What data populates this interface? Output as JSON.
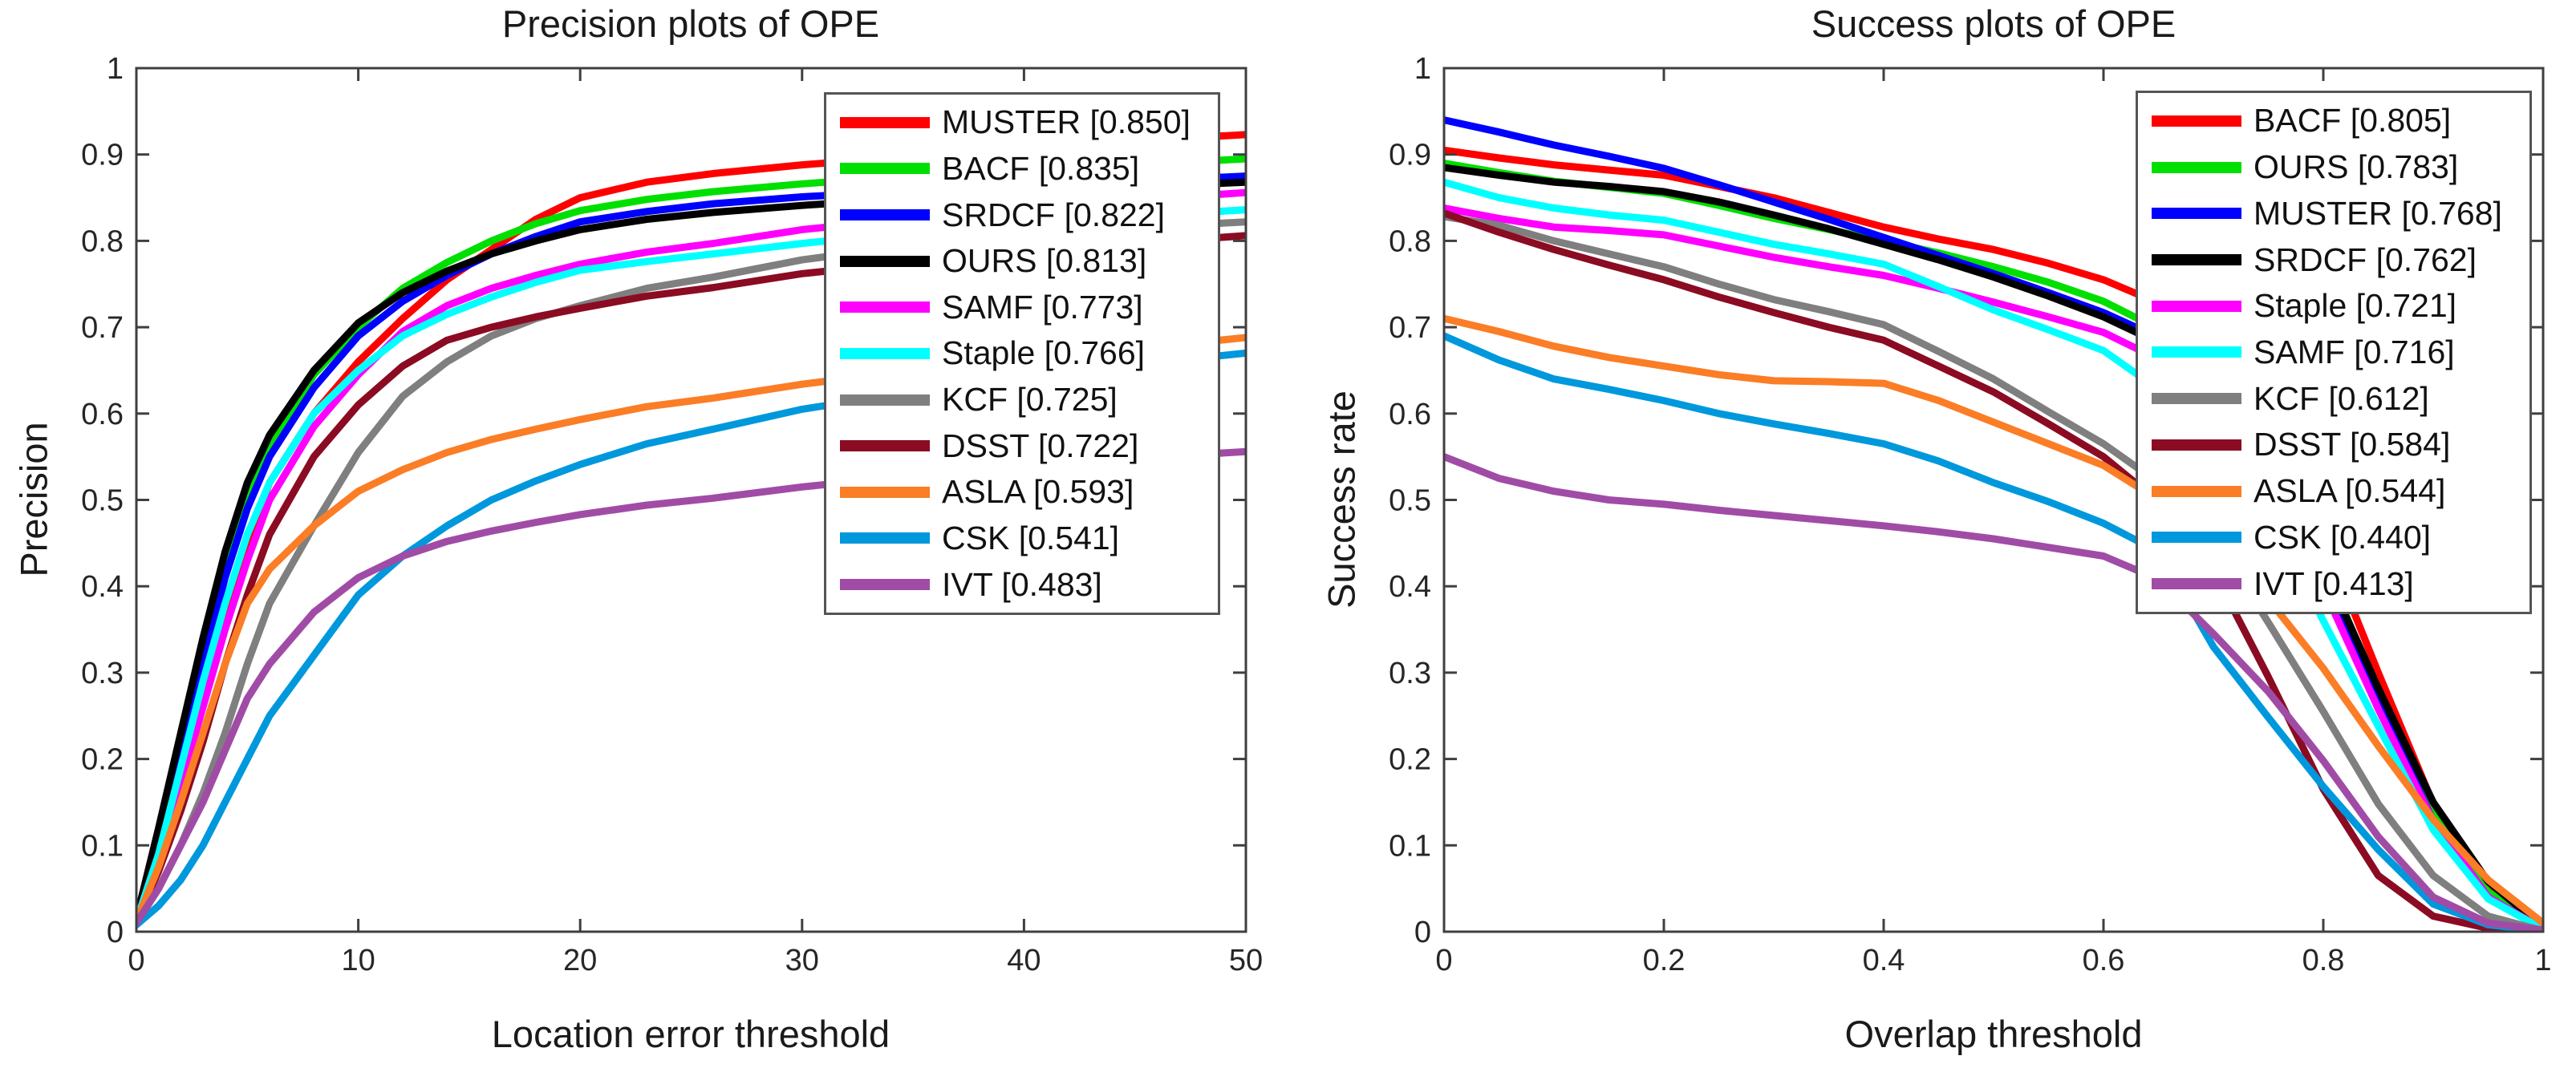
{
  "figure": {
    "background": "#ffffff",
    "axis_color": "#3f3f3f",
    "tick_label_color": "#262626"
  },
  "chart_data": [
    {
      "type": "line",
      "title": "Precision plots of OPE",
      "xlabel": "Location error threshold",
      "ylabel": "Precision",
      "xlim": [
        0,
        50
      ],
      "ylim": [
        0,
        1
      ],
      "grid": false,
      "legend_position": "upper-right-inside",
      "xticks": [
        0,
        10,
        20,
        30,
        40,
        50
      ],
      "xtick_labels": [
        "0",
        "10",
        "20",
        "30",
        "40",
        "50"
      ],
      "yticks": [
        0,
        0.1,
        0.2,
        0.3,
        0.4,
        0.5,
        0.6,
        0.7,
        0.8,
        0.9,
        1
      ],
      "ytick_labels": [
        "0",
        "0.1",
        "0.2",
        "0.3",
        "0.4",
        "0.5",
        "0.6",
        "0.7",
        "0.8",
        "0.9",
        "1"
      ],
      "x": [
        0,
        1,
        2,
        3,
        4,
        5,
        6,
        8,
        10,
        12,
        14,
        16,
        18,
        20,
        23,
        26,
        30,
        35,
        40,
        45,
        50
      ],
      "series": [
        {
          "name": "MUSTER",
          "score": "0.850",
          "color": "#ff0000",
          "values": [
            0.01,
            0.08,
            0.17,
            0.27,
            0.36,
            0.45,
            0.52,
            0.6,
            0.66,
            0.71,
            0.755,
            0.79,
            0.825,
            0.85,
            0.868,
            0.878,
            0.888,
            0.898,
            0.908,
            0.916,
            0.923
          ]
        },
        {
          "name": "BACF",
          "score": "0.835",
          "color": "#00e000",
          "values": [
            0.015,
            0.1,
            0.21,
            0.32,
            0.42,
            0.5,
            0.56,
            0.645,
            0.7,
            0.745,
            0.775,
            0.8,
            0.82,
            0.835,
            0.848,
            0.857,
            0.866,
            0.875,
            0.882,
            0.888,
            0.895
          ]
        },
        {
          "name": "SRDCF",
          "score": "0.822",
          "color": "#0000ff",
          "values": [
            0.013,
            0.1,
            0.2,
            0.31,
            0.41,
            0.49,
            0.55,
            0.63,
            0.69,
            0.73,
            0.76,
            0.785,
            0.805,
            0.822,
            0.834,
            0.843,
            0.851,
            0.858,
            0.864,
            0.869,
            0.875
          ]
        },
        {
          "name": "OURS",
          "score": "0.813",
          "color": "#000000",
          "values": [
            0.015,
            0.12,
            0.23,
            0.34,
            0.44,
            0.52,
            0.575,
            0.65,
            0.705,
            0.74,
            0.765,
            0.785,
            0.8,
            0.813,
            0.825,
            0.833,
            0.841,
            0.85,
            0.857,
            0.862,
            0.868
          ]
        },
        {
          "name": "SAMF",
          "score": "0.773",
          "color": "#ff00ff",
          "values": [
            0.012,
            0.08,
            0.17,
            0.26,
            0.35,
            0.43,
            0.5,
            0.585,
            0.645,
            0.695,
            0.725,
            0.745,
            0.76,
            0.773,
            0.787,
            0.797,
            0.813,
            0.826,
            0.837,
            0.847,
            0.856
          ]
        },
        {
          "name": "Staple",
          "score": "0.766",
          "color": "#00ffff",
          "values": [
            0.012,
            0.09,
            0.19,
            0.29,
            0.38,
            0.46,
            0.52,
            0.6,
            0.65,
            0.69,
            0.715,
            0.735,
            0.752,
            0.766,
            0.776,
            0.785,
            0.797,
            0.81,
            0.82,
            0.828,
            0.836
          ]
        },
        {
          "name": "KCF",
          "score": "0.725",
          "color": "#7f7f7f",
          "values": [
            0.01,
            0.05,
            0.1,
            0.16,
            0.23,
            0.31,
            0.38,
            0.47,
            0.555,
            0.62,
            0.66,
            0.69,
            0.71,
            0.725,
            0.745,
            0.758,
            0.778,
            0.795,
            0.806,
            0.815,
            0.822
          ]
        },
        {
          "name": "DSST",
          "score": "0.722",
          "color": "#8b0b23",
          "values": [
            0.012,
            0.07,
            0.14,
            0.22,
            0.31,
            0.39,
            0.46,
            0.55,
            0.61,
            0.655,
            0.685,
            0.7,
            0.712,
            0.722,
            0.736,
            0.746,
            0.762,
            0.775,
            0.787,
            0.797,
            0.806
          ]
        },
        {
          "name": "ASLA",
          "score": "0.593",
          "color": "#fb7d26",
          "values": [
            0.012,
            0.075,
            0.15,
            0.23,
            0.31,
            0.38,
            0.42,
            0.47,
            0.51,
            0.535,
            0.555,
            0.57,
            0.582,
            0.593,
            0.608,
            0.618,
            0.634,
            0.65,
            0.663,
            0.675,
            0.688
          ]
        },
        {
          "name": "CSK",
          "score": "0.541",
          "color": "#0098dc",
          "values": [
            0.008,
            0.03,
            0.06,
            0.1,
            0.15,
            0.2,
            0.25,
            0.32,
            0.39,
            0.435,
            0.47,
            0.5,
            0.522,
            0.541,
            0.565,
            0.582,
            0.605,
            0.625,
            0.642,
            0.657,
            0.67
          ]
        },
        {
          "name": "IVT",
          "score": "0.483",
          "color": "#a04ca6",
          "values": [
            0.01,
            0.05,
            0.1,
            0.15,
            0.21,
            0.27,
            0.31,
            0.37,
            0.41,
            0.435,
            0.452,
            0.464,
            0.474,
            0.483,
            0.494,
            0.502,
            0.515,
            0.528,
            0.539,
            0.548,
            0.556
          ]
        }
      ]
    },
    {
      "type": "line",
      "title": "Success plots of OPE",
      "xlabel": "Overlap threshold",
      "ylabel": "Success rate",
      "xlim": [
        0,
        1
      ],
      "ylim": [
        0,
        1
      ],
      "grid": false,
      "legend_position": "upper-right-inside",
      "xticks": [
        0,
        0.2,
        0.4,
        0.6,
        0.8,
        1
      ],
      "xtick_labels": [
        "0",
        "0.2",
        "0.4",
        "0.6",
        "0.8",
        "1"
      ],
      "yticks": [
        0,
        0.1,
        0.2,
        0.3,
        0.4,
        0.5,
        0.6,
        0.7,
        0.8,
        0.9,
        1
      ],
      "ytick_labels": [
        "0",
        "0.1",
        "0.2",
        "0.3",
        "0.4",
        "0.5",
        "0.6",
        "0.7",
        "0.8",
        "0.9",
        "1"
      ],
      "x": [
        0,
        0.05,
        0.1,
        0.15,
        0.2,
        0.25,
        0.3,
        0.35,
        0.4,
        0.45,
        0.5,
        0.55,
        0.6,
        0.65,
        0.7,
        0.75,
        0.8,
        0.85,
        0.9,
        0.95,
        1.0
      ],
      "series": [
        {
          "name": "BACF",
          "score": "0.805",
          "color": "#ff0000",
          "values": [
            0.905,
            0.896,
            0.888,
            0.882,
            0.876,
            0.863,
            0.85,
            0.833,
            0.816,
            0.802,
            0.79,
            0.774,
            0.755,
            0.728,
            0.678,
            0.598,
            0.458,
            0.3,
            0.148,
            0.048,
            0.004
          ]
        },
        {
          "name": "OURS",
          "score": "0.783",
          "color": "#00e000",
          "values": [
            0.89,
            0.879,
            0.869,
            0.862,
            0.855,
            0.841,
            0.826,
            0.813,
            0.8,
            0.786,
            0.77,
            0.752,
            0.73,
            0.698,
            0.638,
            0.562,
            0.428,
            0.278,
            0.138,
            0.046,
            0.004
          ]
        },
        {
          "name": "MUSTER",
          "score": "0.768",
          "color": "#0000ff",
          "values": [
            0.94,
            0.926,
            0.911,
            0.898,
            0.884,
            0.865,
            0.845,
            0.825,
            0.804,
            0.783,
            0.762,
            0.74,
            0.717,
            0.688,
            0.633,
            0.558,
            0.42,
            0.268,
            0.128,
            0.04,
            0.003
          ]
        },
        {
          "name": "SRDCF",
          "score": "0.762",
          "color": "#000000",
          "values": [
            0.885,
            0.876,
            0.868,
            0.863,
            0.857,
            0.845,
            0.83,
            0.814,
            0.796,
            0.778,
            0.758,
            0.736,
            0.712,
            0.682,
            0.628,
            0.556,
            0.424,
            0.282,
            0.15,
            0.058,
            0.005
          ]
        },
        {
          "name": "Staple",
          "score": "0.721",
          "color": "#ff00ff",
          "values": [
            0.838,
            0.826,
            0.816,
            0.812,
            0.807,
            0.794,
            0.781,
            0.77,
            0.76,
            0.745,
            0.729,
            0.712,
            0.694,
            0.663,
            0.6,
            0.528,
            0.398,
            0.258,
            0.128,
            0.04,
            0.003
          ]
        },
        {
          "name": "SAMF",
          "score": "0.716",
          "color": "#00ffff",
          "values": [
            0.868,
            0.85,
            0.838,
            0.83,
            0.824,
            0.81,
            0.796,
            0.785,
            0.773,
            0.747,
            0.72,
            0.697,
            0.673,
            0.628,
            0.562,
            0.488,
            0.36,
            0.238,
            0.118,
            0.038,
            0.003
          ]
        },
        {
          "name": "KCF",
          "score": "0.612",
          "color": "#7f7f7f",
          "values": [
            0.828,
            0.818,
            0.8,
            0.785,
            0.77,
            0.75,
            0.732,
            0.718,
            0.703,
            0.672,
            0.64,
            0.602,
            0.565,
            0.52,
            0.458,
            0.358,
            0.255,
            0.148,
            0.065,
            0.018,
            0.001
          ]
        },
        {
          "name": "DSST",
          "score": "0.584",
          "color": "#8b0b23",
          "values": [
            0.832,
            0.81,
            0.79,
            0.772,
            0.755,
            0.735,
            0.717,
            0.7,
            0.685,
            0.655,
            0.625,
            0.588,
            0.55,
            0.498,
            0.418,
            0.295,
            0.165,
            0.065,
            0.018,
            0.004,
            0
          ]
        },
        {
          "name": "ASLA",
          "score": "0.544",
          "color": "#fb7d26",
          "values": [
            0.71,
            0.695,
            0.678,
            0.665,
            0.655,
            0.645,
            0.638,
            0.637,
            0.635,
            0.615,
            0.59,
            0.565,
            0.54,
            0.5,
            0.455,
            0.385,
            0.305,
            0.215,
            0.13,
            0.06,
            0.01
          ]
        },
        {
          "name": "CSK",
          "score": "0.440",
          "color": "#0098dc",
          "values": [
            0.69,
            0.662,
            0.64,
            0.628,
            0.615,
            0.6,
            0.588,
            0.577,
            0.565,
            0.545,
            0.52,
            0.498,
            0.473,
            0.44,
            0.33,
            0.248,
            0.168,
            0.095,
            0.032,
            0.008,
            0.001
          ]
        },
        {
          "name": "IVT",
          "score": "0.413",
          "color": "#a04ca6",
          "values": [
            0.55,
            0.525,
            0.51,
            0.5,
            0.495,
            0.488,
            0.482,
            0.476,
            0.47,
            0.463,
            0.455,
            0.445,
            0.435,
            0.408,
            0.345,
            0.278,
            0.198,
            0.11,
            0.04,
            0.01,
            0.002
          ]
        }
      ]
    }
  ]
}
